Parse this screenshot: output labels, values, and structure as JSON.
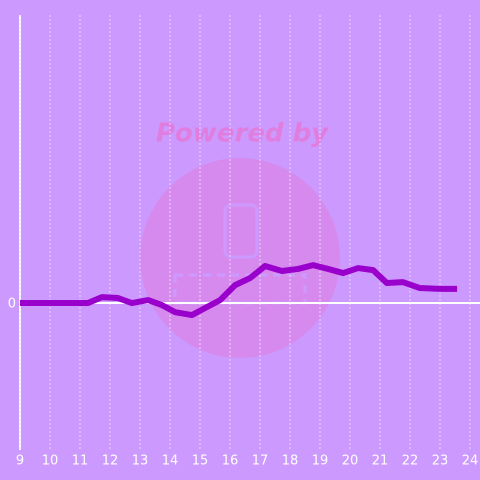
{
  "chart_data": {
    "type": "line",
    "watermark": "Powered by",
    "x": [
      9,
      11.27,
      11.73,
      12.27,
      12.73,
      13.27,
      13.73,
      14.17,
      14.73,
      15.17,
      15.67,
      16.17,
      16.67,
      17.17,
      17.73,
      18.27,
      18.77,
      19.27,
      19.77,
      20.27,
      20.77,
      21.23,
      21.77,
      22.33,
      23,
      23.57
    ],
    "series": [
      {
        "color": "#9900cc",
        "values": [
          0,
          0,
          0.2,
          0.17,
          0,
          0.1,
          -0.07,
          -0.31,
          -0.41,
          -0.17,
          0.1,
          0.61,
          0.85,
          1.26,
          1.09,
          1.16,
          1.29,
          1.16,
          1.02,
          1.19,
          1.12,
          0.68,
          0.71,
          0.51,
          0.48,
          0.48
        ]
      }
    ],
    "xlim": [
      9,
      24
    ],
    "xticks": [
      9,
      10,
      11,
      12,
      13,
      14,
      15,
      16,
      17,
      18,
      19,
      20,
      21,
      22,
      23,
      24
    ],
    "ylim": [
      -5,
      9.8
    ],
    "yticks": [
      0
    ],
    "grid": true
  }
}
